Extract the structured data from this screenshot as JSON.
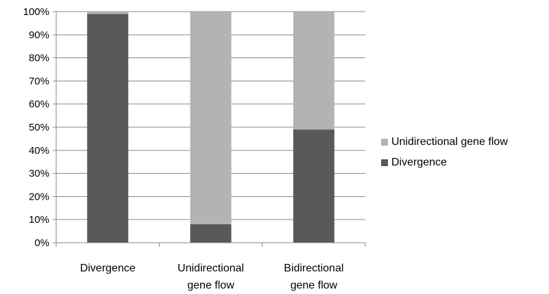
{
  "chart_data": {
    "type": "bar",
    "stacked": true,
    "stack_mode": "percent",
    "categories": [
      [
        "Divergence"
      ],
      [
        "Unidirectional",
        "gene flow"
      ],
      [
        "Bidirectional",
        "gene flow"
      ]
    ],
    "series": [
      {
        "name": "Divergence",
        "color": "#595959",
        "values": [
          99,
          8,
          49
        ]
      },
      {
        "name": "Unidirectional gene flow",
        "color": "#b3b3b3",
        "values": [
          1,
          92,
          51
        ]
      }
    ],
    "y_ticks": [
      "0%",
      "10%",
      "20%",
      "30%",
      "40%",
      "50%",
      "60%",
      "70%",
      "80%",
      "90%",
      "100%"
    ],
    "ylim": [
      0,
      100
    ],
    "grid": true,
    "legend_position": "right",
    "legend_order": [
      1,
      0
    ],
    "title": "",
    "xlabel": "",
    "ylabel": ""
  }
}
